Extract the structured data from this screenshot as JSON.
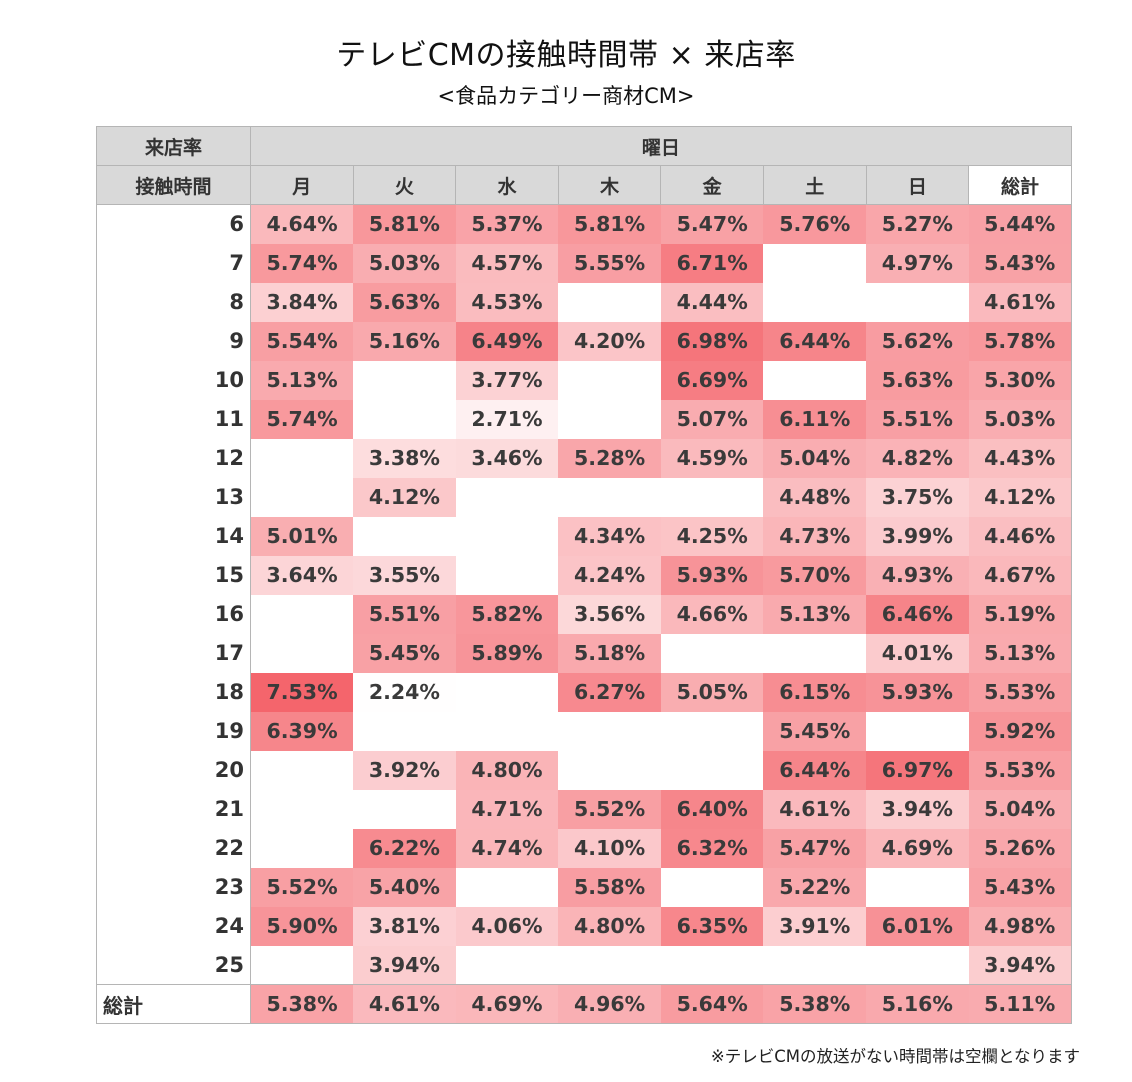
{
  "title": "テレビCMの接触時間帯 × 来店率",
  "subtitle": "<食品カテゴリー商材CM>",
  "footnote": "※テレビCMの放送がない時間帯は空欄となります",
  "colors": {
    "header_bg": "#d9d9d9",
    "scale_low": "#ffffff",
    "scale_high": "#f4636a"
  },
  "chart_data": {
    "type": "heatmap",
    "corner_label": "来店率",
    "column_group_label": "曜日",
    "row_axis_label": "接触時間",
    "columns": [
      "月",
      "火",
      "水",
      "木",
      "金",
      "土",
      "日",
      "総計"
    ],
    "rows": [
      "6",
      "7",
      "8",
      "9",
      "10",
      "11",
      "12",
      "13",
      "14",
      "15",
      "16",
      "17",
      "18",
      "19",
      "20",
      "21",
      "22",
      "23",
      "24",
      "25"
    ],
    "values": [
      [
        "4.64%",
        "5.81%",
        "5.37%",
        "5.81%",
        "5.47%",
        "5.76%",
        "5.27%",
        "5.44%"
      ],
      [
        "5.74%",
        "5.03%",
        "4.57%",
        "5.55%",
        "6.71%",
        "",
        "4.97%",
        "5.43%"
      ],
      [
        "3.84%",
        "5.63%",
        "4.53%",
        "",
        "4.44%",
        "",
        "",
        "4.61%"
      ],
      [
        "5.54%",
        "5.16%",
        "6.49%",
        "4.20%",
        "6.98%",
        "6.44%",
        "5.62%",
        "5.78%"
      ],
      [
        "5.13%",
        "",
        "3.77%",
        "",
        "6.69%",
        "",
        "5.63%",
        "5.30%"
      ],
      [
        "5.74%",
        "",
        "2.71%",
        "",
        "5.07%",
        "6.11%",
        "5.51%",
        "5.03%"
      ],
      [
        "",
        "3.38%",
        "3.46%",
        "5.28%",
        "4.59%",
        "5.04%",
        "4.82%",
        "4.43%"
      ],
      [
        "",
        "4.12%",
        "",
        "",
        "",
        "4.48%",
        "3.75%",
        "4.12%"
      ],
      [
        "5.01%",
        "",
        "",
        "4.34%",
        "4.25%",
        "4.73%",
        "3.99%",
        "4.46%"
      ],
      [
        "3.64%",
        "3.55%",
        "",
        "4.24%",
        "5.93%",
        "5.70%",
        "4.93%",
        "4.67%"
      ],
      [
        "",
        "5.51%",
        "5.82%",
        "3.56%",
        "4.66%",
        "5.13%",
        "6.46%",
        "5.19%"
      ],
      [
        "",
        "5.45%",
        "5.89%",
        "5.18%",
        "",
        "",
        "4.01%",
        "5.13%"
      ],
      [
        "7.53%",
        "2.24%",
        "",
        "6.27%",
        "5.05%",
        "6.15%",
        "5.93%",
        "5.53%"
      ],
      [
        "6.39%",
        "",
        "",
        "",
        "",
        "5.45%",
        "",
        "5.92%"
      ],
      [
        "",
        "3.92%",
        "4.80%",
        "",
        "",
        "6.44%",
        "6.97%",
        "5.53%"
      ],
      [
        "",
        "",
        "4.71%",
        "5.52%",
        "6.40%",
        "4.61%",
        "3.94%",
        "5.04%"
      ],
      [
        "",
        "6.22%",
        "4.74%",
        "4.10%",
        "6.32%",
        "5.47%",
        "4.69%",
        "5.26%"
      ],
      [
        "5.52%",
        "5.40%",
        "",
        "5.58%",
        "",
        "5.22%",
        "",
        "5.43%"
      ],
      [
        "5.90%",
        "3.81%",
        "4.06%",
        "4.80%",
        "6.35%",
        "3.91%",
        "6.01%",
        "4.98%"
      ],
      [
        "",
        "3.94%",
        "",
        "",
        "",
        "",
        "",
        "3.94%"
      ]
    ],
    "total_label": "総計",
    "totals": [
      "5.38%",
      "4.61%",
      "4.69%",
      "4.96%",
      "5.64%",
      "5.38%",
      "5.16%",
      "5.11%"
    ],
    "color_scale_range": [
      2.2,
      7.6
    ]
  }
}
